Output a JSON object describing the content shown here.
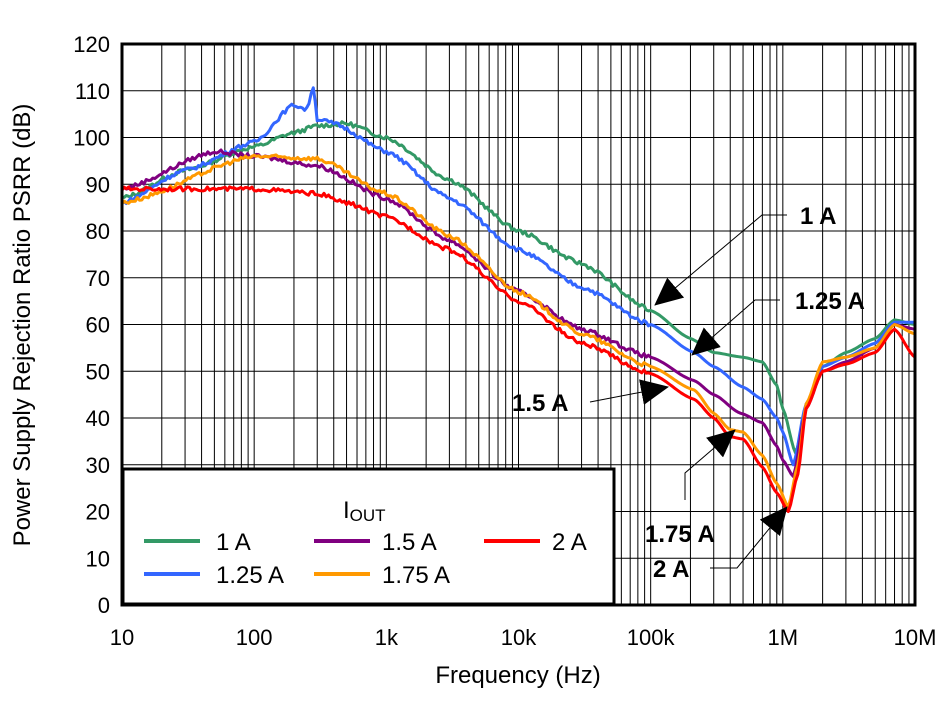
{
  "chart_data": {
    "type": "line",
    "title": "",
    "xlabel": "Frequency (Hz)",
    "ylabel": "Power Supply Rejection Ratio PSRR (dB)",
    "xscale": "log",
    "xlim": [
      10,
      10000000
    ],
    "ylim": [
      0,
      120
    ],
    "grid": true,
    "x_ticks": [
      10,
      100,
      1000,
      10000,
      100000,
      1000000,
      10000000
    ],
    "x_tick_labels": [
      "10",
      "100",
      "1k",
      "10k",
      "100k",
      "1M",
      "10M"
    ],
    "y_ticks": [
      0,
      10,
      20,
      30,
      40,
      50,
      60,
      70,
      80,
      90,
      100,
      110,
      120
    ],
    "y_tick_labels": [
      "0",
      "10",
      "20",
      "30",
      "40",
      "50",
      "60",
      "70",
      "80",
      "90",
      "100",
      "110",
      "120"
    ],
    "legend": {
      "title_main": "I",
      "title_sub": "OUT",
      "placement": "bottom-left"
    },
    "series": [
      {
        "name": "1 A",
        "color": "#339966",
        "x": [
          10,
          30,
          100,
          200,
          300,
          500,
          1000,
          3000,
          10000,
          30000,
          100000,
          200000,
          300000,
          500000,
          700000,
          900000,
          1000000,
          1250000,
          1500000,
          2000000,
          3000000,
          5000000,
          7000000,
          10000000
        ],
        "y": [
          87,
          93,
          98,
          101,
          102.5,
          103,
          100,
          91,
          80,
          73,
          63,
          57,
          54,
          53,
          52,
          47,
          42,
          32.5,
          42,
          51,
          54,
          57,
          61,
          60
        ]
      },
      {
        "name": "1.25 A",
        "color": "#3366ff",
        "x": [
          10,
          30,
          100,
          200,
          250,
          280,
          300,
          400,
          1000,
          3000,
          10000,
          30000,
          100000,
          213000,
          300000,
          500000,
          700000,
          900000,
          1000000,
          1200000,
          1500000,
          2000000,
          3000000,
          5000000,
          7000000,
          10000000
        ],
        "y": [
          86,
          93,
          99,
          107,
          106,
          111,
          104,
          103,
          97,
          87,
          76,
          68,
          60,
          54,
          51,
          46.6,
          44,
          40,
          37,
          30,
          43,
          51,
          53,
          56,
          60.5,
          60.5
        ]
      },
      {
        "name": "1.5 A",
        "color": "#800080",
        "x": [
          10,
          50,
          100,
          300,
          1000,
          3000,
          10000,
          30000,
          100000,
          213000,
          300000,
          480000,
          700000,
          900000,
          1000000,
          1200000,
          1500000,
          2000000,
          3000000,
          5000000,
          7000000,
          10000000
        ],
        "y": [
          89,
          97,
          96,
          94,
          87,
          78,
          67,
          59,
          53,
          48,
          45,
          41,
          39,
          34,
          31,
          27.5,
          42,
          50,
          52,
          55,
          60,
          59
        ]
      },
      {
        "name": "1.75 A",
        "color": "#ff9900",
        "x": [
          10,
          100,
          300,
          1000,
          3000,
          10000,
          30000,
          100000,
          213000,
          300000,
          400000,
          500000,
          700000,
          900000,
          1100000,
          1300000,
          1500000,
          2000000,
          3000000,
          5000000,
          7000000,
          10000000
        ],
        "y": [
          86,
          96,
          95.5,
          88,
          79,
          67,
          58,
          51,
          46,
          41,
          37.5,
          37,
          32,
          26,
          21,
          30,
          43,
          52,
          53,
          55,
          60,
          58
        ]
      },
      {
        "name": "2 A",
        "color": "#ff0000",
        "x": [
          10,
          30,
          100,
          300,
          500,
          1000,
          3000,
          10000,
          30000,
          100000,
          213000,
          300000,
          400000,
          500000,
          700000,
          900000,
          1100000,
          1300000,
          1500000,
          2000000,
          3000000,
          5000000,
          7000000,
          10000000
        ],
        "y": [
          89,
          89,
          89,
          88,
          86,
          83,
          76,
          65,
          56,
          49.5,
          44,
          40,
          36,
          35.5,
          29.5,
          24,
          20,
          28,
          42,
          50,
          51.5,
          54,
          59,
          53
        ]
      }
    ],
    "annotations": [
      "1 A",
      "1.25 A",
      "1.5 A",
      "1.75 A",
      "2 A"
    ]
  }
}
